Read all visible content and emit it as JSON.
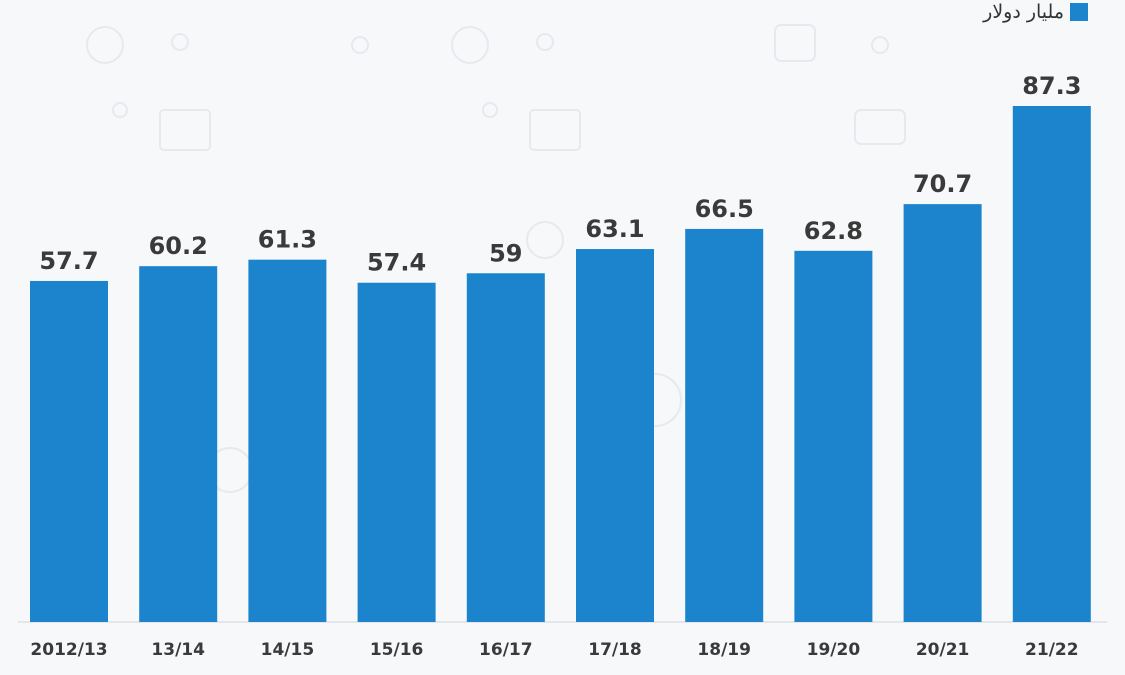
{
  "colors": {
    "bar": "#1b84cc",
    "background": "#f7f8fa",
    "label": "#3a3a3a",
    "baseline": "#cfd4da"
  },
  "legend": {
    "label": "مليار دولار",
    "placement": "top-right"
  },
  "chart_data": {
    "type": "bar",
    "title": "",
    "xlabel": "",
    "ylabel": "",
    "categories": [
      "2012/13",
      "13/14",
      "14/15",
      "15/16",
      "16/17",
      "17/18",
      "18/19",
      "19/20",
      "20/21",
      "21/22"
    ],
    "series": [
      {
        "name": "مليار دولار",
        "values": [
          57.7,
          60.2,
          61.3,
          57.4,
          59,
          63.1,
          66.5,
          62.8,
          70.7,
          87.3
        ]
      }
    ],
    "data_labels": [
      "57.7",
      "60.2",
      "61.3",
      "57.4",
      "59",
      "63.1",
      "66.5",
      "62.8",
      "70.7",
      "87.3"
    ],
    "ylim": [
      0,
      87.3
    ],
    "grid": false,
    "legend_position": "top-right"
  }
}
